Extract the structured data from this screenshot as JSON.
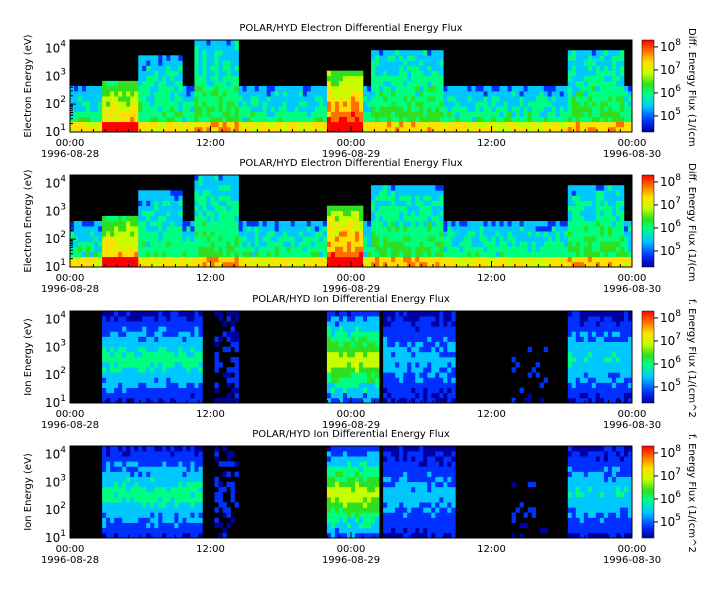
{
  "chart_data": [
    {
      "type": "heatmap",
      "title": "POLAR/HYD  Electron Differential Energy Flux",
      "ylabel": "Electron Energy (eV)",
      "colorbar_label": "Diff. Energy Flux (1/(cm",
      "yscale": "log",
      "ylim": [
        10,
        20000
      ],
      "y_ticks": [
        {
          "base": "10",
          "exp": "1"
        },
        {
          "base": "10",
          "exp": "2"
        },
        {
          "base": "10",
          "exp": "3"
        },
        {
          "base": "10",
          "exp": "4"
        }
      ],
      "x_ticks": [
        {
          "t": "00:00",
          "d": "1996-08-28"
        },
        {
          "t": "12:00",
          "d": ""
        },
        {
          "t": "00:00",
          "d": "1996-08-29"
        },
        {
          "t": "12:00",
          "d": ""
        },
        {
          "t": "00:00",
          "d": "1996-08-30"
        }
      ],
      "xlim": [
        "1996-08-28 00:00",
        "1996-08-30 00:00"
      ],
      "colorbar_ticks": [
        {
          "base": "10",
          "exp": "5"
        },
        {
          "base": "10",
          "exp": "6"
        },
        {
          "base": "10",
          "exp": "7"
        },
        {
          "base": "10",
          "exp": "8"
        }
      ],
      "colorbar_range": [
        20000,
        200000000
      ]
    },
    {
      "type": "heatmap",
      "title": "POLAR/HYD  Electron Differential Energy Flux",
      "ylabel": "Electron Energy (eV)",
      "colorbar_label": "Diff. Energy Flux (1/(cm",
      "yscale": "log",
      "ylim": [
        10,
        20000
      ],
      "y_ticks": [
        {
          "base": "10",
          "exp": "1"
        },
        {
          "base": "10",
          "exp": "2"
        },
        {
          "base": "10",
          "exp": "3"
        },
        {
          "base": "10",
          "exp": "4"
        }
      ],
      "x_ticks": [
        {
          "t": "00:00",
          "d": "1996-08-28"
        },
        {
          "t": "12:00",
          "d": ""
        },
        {
          "t": "00:00",
          "d": "1996-08-29"
        },
        {
          "t": "12:00",
          "d": ""
        },
        {
          "t": "00:00",
          "d": "1996-08-30"
        }
      ],
      "xlim": [
        "1996-08-28 00:00",
        "1996-08-30 00:00"
      ],
      "colorbar_ticks": [
        {
          "base": "10",
          "exp": "5"
        },
        {
          "base": "10",
          "exp": "6"
        },
        {
          "base": "10",
          "exp": "7"
        },
        {
          "base": "10",
          "exp": "8"
        }
      ],
      "colorbar_range": [
        20000,
        200000000
      ]
    },
    {
      "type": "heatmap",
      "title": "POLAR/HYD  Ion Differential Energy Flux",
      "ylabel": "Ion Energy (eV)",
      "colorbar_label": "f. Energy Flux (1/(cm^2",
      "yscale": "log",
      "ylim": [
        10,
        20000
      ],
      "y_ticks": [
        {
          "base": "10",
          "exp": "1"
        },
        {
          "base": "10",
          "exp": "2"
        },
        {
          "base": "10",
          "exp": "3"
        },
        {
          "base": "10",
          "exp": "4"
        }
      ],
      "x_ticks": [
        {
          "t": "00:00",
          "d": "1996-08-28"
        },
        {
          "t": "12:00",
          "d": ""
        },
        {
          "t": "00:00",
          "d": "1996-08-29"
        },
        {
          "t": "12:00",
          "d": ""
        },
        {
          "t": "00:00",
          "d": "1996-08-30"
        }
      ],
      "xlim": [
        "1996-08-28 00:00",
        "1996-08-30 00:00"
      ],
      "colorbar_ticks": [
        {
          "base": "10",
          "exp": "5"
        },
        {
          "base": "10",
          "exp": "6"
        },
        {
          "base": "10",
          "exp": "7"
        },
        {
          "base": "10",
          "exp": "8"
        }
      ],
      "colorbar_range": [
        20000,
        200000000
      ]
    },
    {
      "type": "heatmap",
      "title": "POLAR/HYD  Ion Differential Energy Flux",
      "ylabel": "Ion Energy (eV)",
      "colorbar_label": "f. Energy Flux (1/(cm^2",
      "yscale": "log",
      "ylim": [
        10,
        20000
      ],
      "y_ticks": [
        {
          "base": "10",
          "exp": "1"
        },
        {
          "base": "10",
          "exp": "2"
        },
        {
          "base": "10",
          "exp": "3"
        },
        {
          "base": "10",
          "exp": "4"
        }
      ],
      "x_ticks": [
        {
          "t": "00:00",
          "d": "1996-08-28"
        },
        {
          "t": "12:00",
          "d": ""
        },
        {
          "t": "00:00",
          "d": "1996-08-29"
        },
        {
          "t": "12:00",
          "d": ""
        },
        {
          "t": "00:00",
          "d": "1996-08-30"
        }
      ],
      "xlim": [
        "1996-08-28 00:00",
        "1996-08-30 00:00"
      ],
      "colorbar_ticks": [
        {
          "base": "10",
          "exp": "5"
        },
        {
          "base": "10",
          "exp": "6"
        },
        {
          "base": "10",
          "exp": "7"
        },
        {
          "base": "10",
          "exp": "8"
        }
      ],
      "colorbar_range": [
        20000,
        200000000
      ]
    }
  ],
  "colors": {
    "background": "#000000",
    "colormap": [
      "#0000a0",
      "#0030ff",
      "#00c8ff",
      "#00ff80",
      "#30e020",
      "#c8ff00",
      "#ffe000",
      "#ff7000",
      "#ff0000"
    ]
  }
}
